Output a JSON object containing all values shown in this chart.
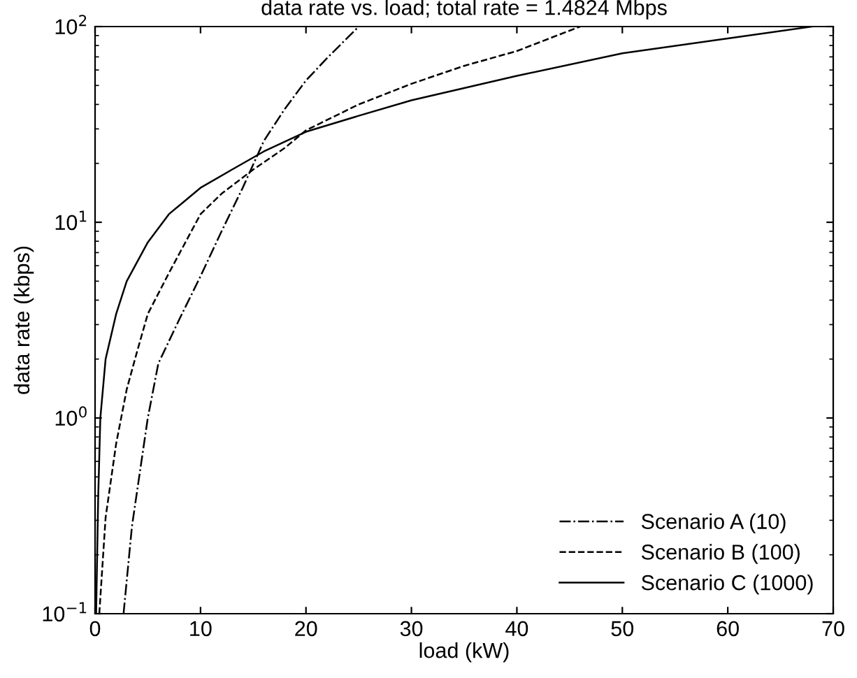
{
  "chart_data": {
    "type": "line",
    "title": "data rate vs. load; total rate = 1.4824 Mbps",
    "xlabel": "load (kW)",
    "ylabel": "data rate (kbps)",
    "log": "y",
    "xlim": [
      0,
      70
    ],
    "ylim": [
      0.1,
      100
    ],
    "xticks": [
      0,
      10,
      20,
      30,
      40,
      50,
      60,
      70
    ],
    "yticks": [
      {
        "value": 0.1,
        "label": "10$^{−1}$"
      },
      {
        "value": 1,
        "label": "10$^{0}$"
      },
      {
        "value": 10,
        "label": "10$^{1}$"
      },
      {
        "value": 100,
        "label": "10$^{2}$"
      }
    ],
    "grid": false,
    "legend": "bottom right",
    "series": [
      {
        "name": "Scenario A (10)",
        "color": "#000000",
        "line_style": "dashdot",
        "x": [
          2.7,
          3.5,
          5,
          6,
          8,
          10,
          12,
          14,
          16,
          18,
          20,
          22,
          25
        ],
        "values": [
          0.1,
          0.28,
          1,
          1.9,
          3.2,
          5.3,
          9,
          15,
          26,
          38,
          53,
          69,
          100
        ]
      },
      {
        "name": "Scenario B (100)",
        "color": "#000000",
        "line_style": "dashed",
        "x": [
          0.4,
          1,
          2,
          3,
          4,
          5,
          7,
          10,
          12,
          15,
          18,
          20,
          25,
          30,
          35,
          40,
          46
        ],
        "values": [
          0.1,
          0.31,
          0.74,
          1.4,
          2.2,
          3.4,
          5.5,
          11,
          14,
          18.6,
          24,
          29.5,
          40,
          51,
          63,
          75,
          100
        ]
      },
      {
        "name": "Scenario C (1000)",
        "color": "#000000",
        "line_style": "solid",
        "x": [
          0.1,
          0.3,
          0.5,
          1,
          2,
          3,
          5,
          7,
          10,
          13,
          16,
          20,
          25,
          30,
          40,
          50,
          60,
          68
        ],
        "values": [
          0.1,
          0.4,
          1,
          2,
          3.4,
          5,
          7.9,
          11,
          15,
          18.6,
          23,
          29,
          35,
          42,
          56,
          73,
          87,
          100
        ]
      }
    ]
  }
}
